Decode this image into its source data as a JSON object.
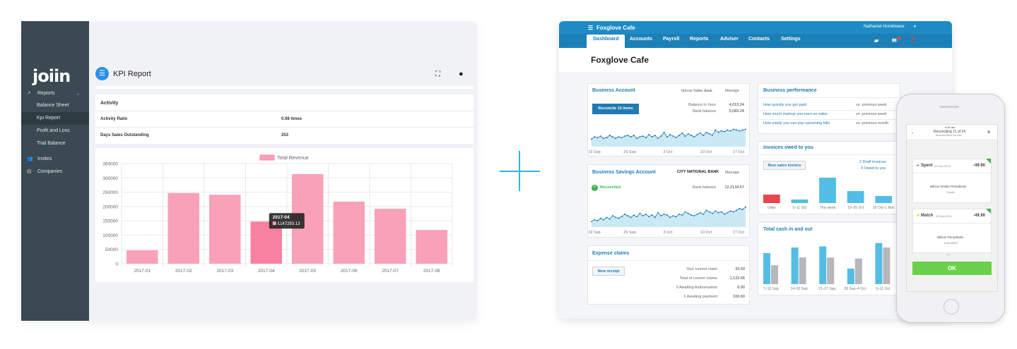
{
  "join": {
    "logo": "joiin",
    "sidebar": [
      {
        "label": "Reports",
        "icon": "trend-icon",
        "type": "section"
      },
      {
        "label": "Balance Sheet",
        "type": "sub"
      },
      {
        "label": "Kpi Report",
        "type": "sub",
        "active": true
      },
      {
        "label": "Profit and Loss",
        "type": "sub"
      },
      {
        "label": "Trial Balance",
        "type": "sub"
      },
      {
        "label": "Invites",
        "icon": "users-icon",
        "type": "section"
      },
      {
        "label": "Companies",
        "icon": "building-icon",
        "type": "section"
      }
    ],
    "header": {
      "title": "KPI Report",
      "menu_icon": "menu-icon",
      "fullscreen_icon": "fullscreen-icon",
      "user_icon": "user-icon"
    },
    "activity": {
      "title": "Activity",
      "rows": [
        {
          "label": "Activity Ratio",
          "value": "0.98 times"
        },
        {
          "label": "Days Sales Outstanding",
          "value": "253"
        }
      ]
    }
  },
  "chart_data": [
    {
      "type": "bar",
      "legend": "Total Revenue",
      "legend_color": "#f9a1b9",
      "categories": [
        "2017-01",
        "2017-02",
        "2017-03",
        "2017-04",
        "2017-05",
        "2017-06",
        "2017-07",
        "2017-08"
      ],
      "series": [
        {
          "name": "Total Revenue",
          "values": [
            47000,
            247000,
            241000,
            147293.13,
            313000,
            217000,
            192000,
            118000
          ]
        }
      ],
      "ylim": [
        0,
        350000
      ],
      "yticks": [
        "0",
        "50000",
        "100000",
        "150000",
        "200000",
        "250000",
        "300000",
        "350000"
      ],
      "grid": true,
      "tooltip": {
        "title": "2017-04",
        "value": "£147293.13"
      }
    },
    {
      "type": "line",
      "title": "Business Account",
      "x_ticks": [
        "19 Sep",
        "26 Sep",
        "3 Oct",
        "10 Oct",
        "17 Oct"
      ],
      "values": [
        25,
        28,
        27,
        29,
        26,
        27,
        30,
        28,
        26,
        28,
        27,
        29,
        30,
        28,
        30,
        26,
        28,
        29,
        27,
        31,
        28,
        30,
        26,
        29,
        34,
        28,
        31,
        29,
        27,
        30,
        33,
        29,
        32,
        30,
        28,
        31,
        33,
        30,
        34,
        32,
        30,
        37,
        34,
        36,
        35,
        37,
        36,
        38,
        37,
        36,
        37,
        38
      ]
    },
    {
      "type": "line",
      "title": "Business Savings Account",
      "x_ticks": [
        "19 Sep",
        "26 Sep",
        "3 Oct",
        "10 Oct",
        "17 Oct"
      ],
      "values": [
        22,
        24,
        23,
        26,
        24,
        27,
        25,
        29,
        27,
        26,
        28,
        31,
        29,
        27,
        30,
        28,
        32,
        29,
        31,
        28,
        30,
        27,
        33,
        29,
        31,
        30,
        27,
        29,
        28,
        31,
        30,
        34,
        32,
        30,
        29,
        31,
        33,
        31,
        36,
        34,
        32,
        35,
        33,
        34,
        31,
        33,
        35,
        34,
        36,
        38,
        37,
        40
      ]
    },
    {
      "type": "bar",
      "title": "Invoices owed to you",
      "categories": [
        "Older",
        "5–11 Oct",
        "This week",
        "19–25 Oct",
        "26 Oct–1 Nov"
      ],
      "values": [
        12,
        5,
        36,
        17,
        10
      ],
      "colors": [
        "#e5474c",
        "#53bde6",
        "#53bde6",
        "#53bde6",
        "#53bde6"
      ]
    },
    {
      "type": "bar",
      "title": "Total cash in and out",
      "categories": [
        "7–12 Sep",
        "14–20 Sep",
        "21–27 Sep",
        "28 Sep–4 Oct",
        "5–11 Oct"
      ],
      "series": [
        {
          "values": [
            28,
            33,
            34,
            14,
            37
          ]
        },
        {
          "values": [
            17,
            24,
            24,
            23,
            33
          ]
        }
      ],
      "colors": [
        "#53bde6",
        "#b5b7ba"
      ]
    }
  ],
  "xero": {
    "app": "Foxglove Cafe",
    "user": "Nathaniel Hornblower",
    "tabs": [
      "Dashboard",
      "Accounts",
      "Payroll",
      "Reports",
      "Adviser",
      "Contacts",
      "Settings"
    ],
    "org_title": "Foxglove Cafe",
    "business_account": {
      "title": "Business Account",
      "bank": "Silicon Valley Bank",
      "manage": "Manage",
      "button": "Reconcile 12 items",
      "balance_xero_label": "Balance in Xero",
      "balance_xero": "4,013.24",
      "bank_balance_label": "Bank balance",
      "bank_balance": "5,083.24"
    },
    "savings_account": {
      "title": "Business Savings Account",
      "bank": "CITY NATIONAL BANK",
      "manage": "Manage",
      "status": "Reconciled",
      "bank_balance_label": "Bank balance",
      "bank_balance": "12,2134.57"
    },
    "expense_claims": {
      "title": "Expense claims",
      "button": "New receipt",
      "rows": [
        {
          "label": "Your current claim",
          "value": "33.50"
        },
        {
          "label": "Total of current claims",
          "value": "1,122.66"
        },
        {
          "label": "0 Awaiting Authorisation",
          "value": "0.00"
        },
        {
          "label": "1 Awaiting payment",
          "value": "100.60"
        }
      ]
    },
    "performance": {
      "title": "Business performance",
      "rows": [
        {
          "label": "How quickly you get paid",
          "compare": "vs. previous week"
        },
        {
          "label": "How much markup you earn on sales",
          "compare": "vs. previous week"
        },
        {
          "label": "How easily you can pay upcoming bills",
          "compare": "vs. previous month"
        }
      ]
    },
    "invoices": {
      "title": "Invoices owed to you",
      "button": "New sales invoice",
      "drafts": "2 Draft invoices",
      "owed": "4 Owed to you"
    },
    "cash": {
      "title": "Total cash in and out"
    }
  },
  "phone": {
    "status_time": "9:40 am",
    "title": "Reconciling 11 of 24",
    "subtitle": "Business Bank Account",
    "card1": {
      "type": "Spent",
      "date": "29 Sep 2014",
      "amount": "-49.90",
      "payee": "Wilson Online Periodicals",
      "link": "Details"
    },
    "card2": {
      "type": "Match",
      "date": "29 Sep 2014",
      "amount": "-49.90",
      "payee": "Wilson Periodicals",
      "ref": "SUB-088007"
    },
    "ok": "OK"
  }
}
